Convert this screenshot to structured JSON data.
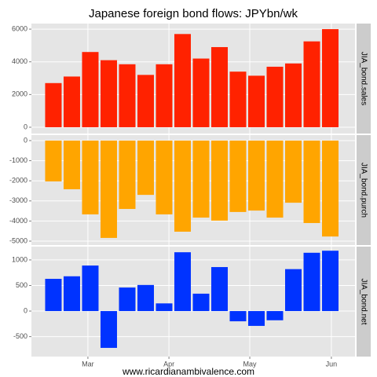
{
  "chart_data": [
    {
      "type": "bar",
      "title": "Japanese foreign bond flows: JPYbn/wk",
      "strip": "JIA_bond.sales",
      "color": "#ff2200",
      "categories": [
        null,
        null,
        null,
        null,
        null,
        null,
        null,
        null,
        null,
        null,
        null,
        null,
        null,
        null,
        null,
        null
      ],
      "values": [
        2700,
        3100,
        4600,
        4100,
        3850,
        3200,
        3850,
        5700,
        4200,
        4900,
        3400,
        3150,
        3700,
        3900,
        5250,
        6000
      ],
      "ylim": [
        -385,
        6340
      ],
      "yticks": [
        0,
        2000,
        4000,
        6000
      ],
      "grid": true
    },
    {
      "type": "bar",
      "strip": "JIA_bond.purch",
      "color": "#ffa500",
      "categories": [
        null,
        null,
        null,
        null,
        null,
        null,
        null,
        null,
        null,
        null,
        null,
        null,
        null,
        null,
        null,
        null
      ],
      "values": [
        -2030,
        -2420,
        -3670,
        -4840,
        -3400,
        -2700,
        -3670,
        -4530,
        -3830,
        -3980,
        -3550,
        -3480,
        -3830,
        -3090,
        -4100,
        -4770
      ],
      "ylim": [
        -5195,
        273
      ],
      "yticks": [
        -5000,
        -4000,
        -3000,
        -2000,
        -1000,
        0
      ],
      "grid": true
    },
    {
      "type": "bar",
      "strip": "JIA_bond.net",
      "color": "#0033ff",
      "categories": [
        null,
        null,
        null,
        null,
        null,
        null,
        null,
        null,
        null,
        null,
        null,
        null,
        null,
        null,
        null,
        null
      ],
      "values": [
        630,
        680,
        890,
        -720,
        460,
        510,
        150,
        1150,
        340,
        860,
        -200,
        -290,
        -180,
        820,
        1140,
        1180
      ],
      "ylim": [
        -890,
        1260
      ],
      "yticks": [
        -500,
        0,
        500,
        1000
      ],
      "grid": true,
      "xlim": [
        -1.19,
        16.34
      ],
      "xticks": [
        {
          "value": 1.87,
          "label": "Mar"
        },
        {
          "value": 6.26,
          "label": "Apr"
        },
        {
          "value": 10.64,
          "label": "May"
        },
        {
          "value": 15.06,
          "label": "Jun"
        }
      ],
      "caption": "www.ricardianambivalence.com"
    }
  ]
}
